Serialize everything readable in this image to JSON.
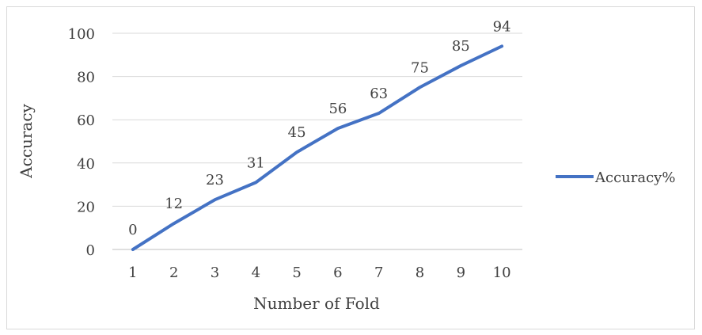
{
  "chart_data": {
    "type": "line",
    "title": "",
    "xlabel": "Number of Fold",
    "ylabel": "Accuracy",
    "categories": [
      "1",
      "2",
      "3",
      "4",
      "5",
      "6",
      "7",
      "8",
      "9",
      "10"
    ],
    "series": [
      {
        "name": "Accuracy%",
        "values": [
          0,
          12,
          23,
          31,
          45,
          56,
          63,
          75,
          85,
          94
        ],
        "color": "#4472c4"
      }
    ],
    "ylim": [
      0,
      100
    ],
    "yticks": [
      0,
      20,
      40,
      60,
      80,
      100
    ],
    "grid": true,
    "legend_position": "right",
    "data_labels": true
  }
}
